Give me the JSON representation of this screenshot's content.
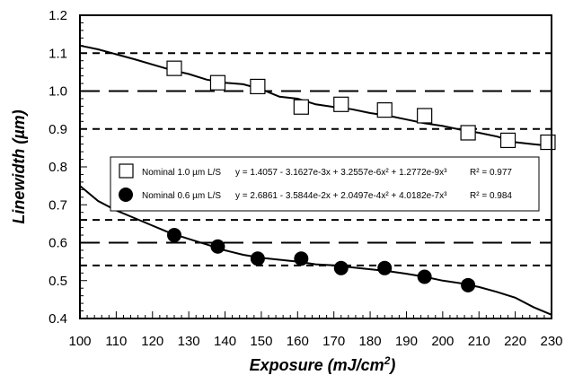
{
  "chart_data": {
    "type": "scatter",
    "title": "",
    "xlabel_main": "Exposure (mJ/cm",
    "xlabel_sup": "2",
    "xlabel_tail": ")",
    "ylabel": "Linewidth (µm)",
    "xlim": [
      100,
      230
    ],
    "ylim": [
      0.4,
      1.2
    ],
    "x_ticks": [
      "100",
      "110",
      "120",
      "130",
      "140",
      "150",
      "160",
      "170",
      "180",
      "190",
      "200",
      "210",
      "220",
      "230"
    ],
    "y_ticks": [
      "0.4",
      "0.5",
      "0.6",
      "0.7",
      "0.8",
      "0.9",
      "1.0",
      "1.1",
      "1.2"
    ],
    "grid": false,
    "legend_position": "center-right",
    "series": [
      {
        "name": "Nominal 1.0 µm L/S",
        "marker": "open-square",
        "color": "#000000",
        "x": [
          126,
          138,
          149,
          161,
          172,
          184,
          195,
          207,
          218,
          229
        ],
        "y": [
          1.06,
          1.022,
          1.012,
          0.958,
          0.965,
          0.95,
          0.935,
          0.89,
          0.87,
          0.865
        ],
        "fit_equation": "y = 1.4057 - 3.1627e-3x + 3.2557e-6x² + 1.2772e-9x³",
        "r2": "R² = 0.977",
        "fit_curve": {
          "x": [
            100,
            105,
            110,
            115,
            120,
            125,
            130,
            135,
            140,
            145,
            150,
            155,
            160,
            165,
            170,
            175,
            180,
            185,
            190,
            195,
            200,
            205,
            210,
            215,
            220,
            225,
            230
          ],
          "y": [
            1.12,
            1.11,
            1.097,
            1.084,
            1.07,
            1.056,
            1.045,
            1.03,
            1.022,
            1.018,
            1.005,
            0.985,
            0.98,
            0.965,
            0.958,
            0.952,
            0.942,
            0.935,
            0.925,
            0.915,
            0.908,
            0.898,
            0.89,
            0.88,
            0.865,
            0.86,
            0.855
          ]
        }
      },
      {
        "name": "Nominal 0.6 µm L/S",
        "marker": "filled-circle",
        "color": "#000000",
        "x": [
          126,
          138,
          149,
          161,
          172,
          184,
          195,
          207
        ],
        "y": [
          0.62,
          0.59,
          0.558,
          0.558,
          0.533,
          0.533,
          0.51,
          0.488
        ],
        "fit_equation": "y = 2.6861 - 3.5844e-2x + 2.0497e-4x² + 4.0182e-7x³",
        "r2": "R² = 0.984",
        "fit_curve": {
          "x": [
            100,
            105,
            110,
            115,
            120,
            125,
            130,
            135,
            140,
            145,
            150,
            155,
            160,
            165,
            170,
            175,
            180,
            185,
            190,
            195,
            200,
            205,
            210,
            215,
            220,
            225,
            230
          ],
          "y": [
            0.75,
            0.71,
            0.685,
            0.665,
            0.645,
            0.625,
            0.61,
            0.595,
            0.58,
            0.568,
            0.56,
            0.555,
            0.55,
            0.543,
            0.54,
            0.535,
            0.53,
            0.525,
            0.518,
            0.51,
            0.5,
            0.493,
            0.483,
            0.47,
            0.455,
            0.43,
            0.41
          ]
        }
      }
    ],
    "reference_lines": [
      {
        "y": 1.1,
        "style": "short-dash"
      },
      {
        "y": 1.0,
        "style": "long-dash"
      },
      {
        "y": 0.9,
        "style": "short-dash"
      },
      {
        "y": 0.66,
        "style": "short-dash"
      },
      {
        "y": 0.6,
        "style": "long-dash"
      },
      {
        "y": 0.54,
        "style": "short-dash"
      }
    ]
  }
}
